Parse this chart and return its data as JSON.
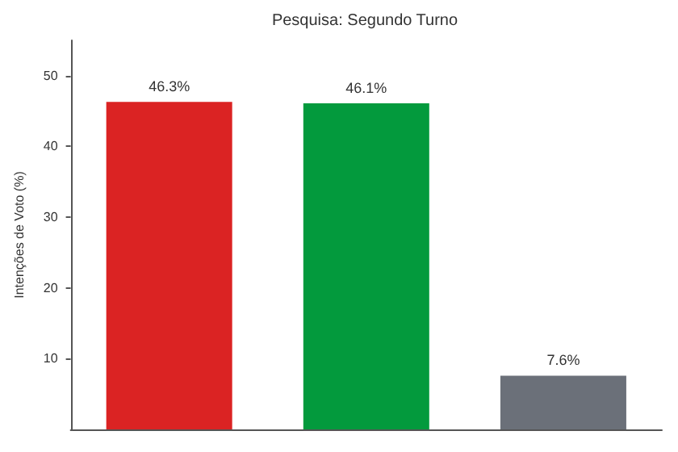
{
  "chart_data": {
    "type": "bar",
    "title": "Pesquisa: Segundo Turno",
    "ylabel": "Intenções de Voto (%)",
    "categories": [
      null,
      null,
      null
    ],
    "values": [
      46.3,
      46.1,
      7.6
    ],
    "colors": [
      "#db2323",
      "#039a3d",
      "#6b7079"
    ],
    "value_labels": [
      "46.3%",
      "46.1%",
      "7.6%"
    ],
    "ylim": [
      0,
      55
    ],
    "yticks": [
      10,
      20,
      30,
      40,
      50
    ],
    "grid": false
  }
}
